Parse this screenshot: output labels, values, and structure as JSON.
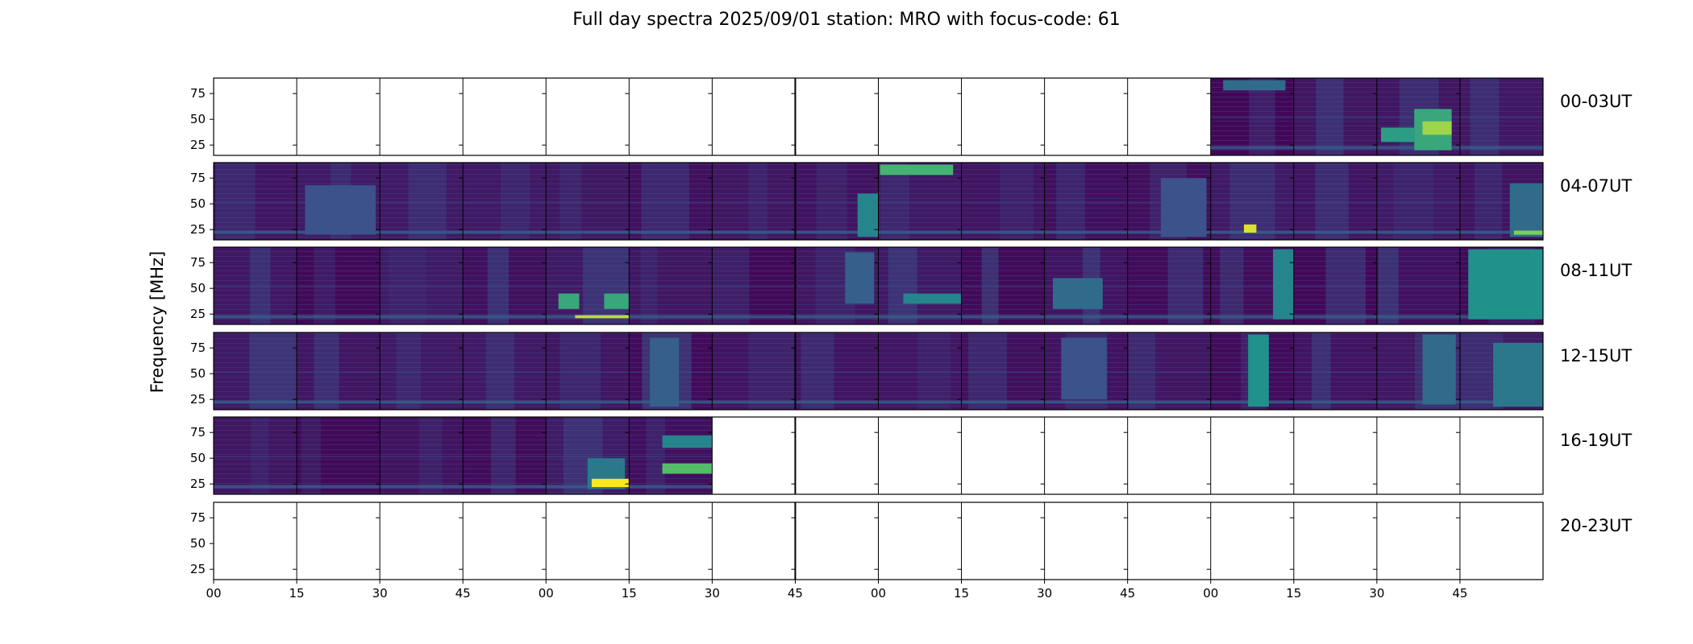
{
  "chart_data": {
    "type": "heatmap",
    "title": "Full day spectra 2025/09/01 station: MRO with focus-code: 61",
    "ylabel": "Frequency [MHz]",
    "xlabel": "",
    "ytick_labels": [
      "25",
      "50",
      "75"
    ],
    "ytick_values": [
      25,
      50,
      75
    ],
    "ylim": [
      15,
      90
    ],
    "xtick_labels": [
      "00",
      "15",
      "30",
      "45",
      "00",
      "15",
      "30",
      "45",
      "00",
      "15",
      "30",
      "45",
      "00",
      "15",
      "30",
      "45"
    ],
    "colormap": "viridis",
    "row_labels": [
      "00-03UT",
      "04-07UT",
      "08-11UT",
      "12-15UT",
      "16-19UT",
      "20-23UT"
    ],
    "panels_per_row": 16,
    "data_present": [
      [
        0,
        0,
        0,
        0,
        0,
        0,
        0,
        0,
        0,
        0,
        0,
        0,
        1,
        1,
        1,
        1
      ],
      [
        1,
        1,
        1,
        1,
        1,
        1,
        1,
        1,
        1,
        1,
        1,
        1,
        1,
        1,
        1,
        1
      ],
      [
        1,
        1,
        1,
        1,
        1,
        1,
        1,
        1,
        1,
        1,
        1,
        1,
        1,
        1,
        1,
        1
      ],
      [
        1,
        1,
        1,
        1,
        1,
        1,
        1,
        1,
        1,
        1,
        1,
        1,
        1,
        1,
        1,
        1
      ],
      [
        1,
        1,
        1,
        1,
        1,
        1,
        0,
        0,
        0,
        0,
        0,
        0,
        0,
        0,
        0,
        0
      ],
      [
        0,
        0,
        0,
        0,
        0,
        0,
        0,
        0,
        0,
        0,
        0,
        0,
        0,
        0,
        0,
        0
      ]
    ],
    "bursts": [
      {
        "row": 0,
        "col": 12,
        "x0": 0.15,
        "x1": 0.9,
        "f0": 78,
        "f1": 88,
        "level": 0.35
      },
      {
        "row": 0,
        "col": 14,
        "x0": 0.05,
        "x1": 0.45,
        "f0": 28,
        "f1": 42,
        "level": 0.55
      },
      {
        "row": 0,
        "col": 14,
        "x0": 0.45,
        "x1": 0.9,
        "f0": 20,
        "f1": 60,
        "level": 0.6
      },
      {
        "row": 0,
        "col": 14,
        "x0": 0.55,
        "x1": 0.9,
        "f0": 35,
        "f1": 48,
        "level": 0.85
      },
      {
        "row": 1,
        "col": 1,
        "x0": 0.1,
        "x1": 0.95,
        "f0": 20,
        "f1": 68,
        "level": 0.25
      },
      {
        "row": 1,
        "col": 7,
        "x0": 0.75,
        "x1": 1.0,
        "f0": 18,
        "f1": 60,
        "level": 0.45
      },
      {
        "row": 1,
        "col": 8,
        "x0": 0.02,
        "x1": 0.9,
        "f0": 78,
        "f1": 88,
        "level": 0.65
      },
      {
        "row": 1,
        "col": 11,
        "x0": 0.4,
        "x1": 0.95,
        "f0": 18,
        "f1": 75,
        "level": 0.25
      },
      {
        "row": 1,
        "col": 12,
        "x0": 0.4,
        "x1": 0.55,
        "f0": 22,
        "f1": 30,
        "level": 0.95
      },
      {
        "row": 1,
        "col": 15,
        "x0": 0.6,
        "x1": 1.0,
        "f0": 18,
        "f1": 70,
        "level": 0.35
      },
      {
        "row": 1,
        "col": 15,
        "x0": 0.65,
        "x1": 1.0,
        "f0": 20,
        "f1": 24,
        "level": 0.8
      },
      {
        "row": 2,
        "col": 4,
        "x0": 0.15,
        "x1": 0.4,
        "f0": 30,
        "f1": 45,
        "level": 0.6
      },
      {
        "row": 2,
        "col": 4,
        "x0": 0.7,
        "x1": 1.0,
        "f0": 30,
        "f1": 45,
        "level": 0.6
      },
      {
        "row": 2,
        "col": 4,
        "x0": 0.35,
        "x1": 1.0,
        "f0": 21,
        "f1": 24,
        "level": 0.9
      },
      {
        "row": 2,
        "col": 7,
        "x0": 0.6,
        "x1": 0.95,
        "f0": 35,
        "f1": 85,
        "level": 0.3
      },
      {
        "row": 2,
        "col": 8,
        "x0": 0.3,
        "x1": 1.0,
        "f0": 35,
        "f1": 45,
        "level": 0.45
      },
      {
        "row": 2,
        "col": 10,
        "x0": 0.1,
        "x1": 0.7,
        "f0": 30,
        "f1": 60,
        "level": 0.35
      },
      {
        "row": 2,
        "col": 12,
        "x0": 0.75,
        "x1": 1.0,
        "f0": 20,
        "f1": 88,
        "level": 0.45
      },
      {
        "row": 2,
        "col": 15,
        "x0": 0.1,
        "x1": 1.0,
        "f0": 20,
        "f1": 88,
        "level": 0.5
      },
      {
        "row": 3,
        "col": 5,
        "x0": 0.25,
        "x1": 0.6,
        "f0": 18,
        "f1": 85,
        "level": 0.3
      },
      {
        "row": 3,
        "col": 10,
        "x0": 0.2,
        "x1": 0.75,
        "f0": 25,
        "f1": 85,
        "level": 0.25
      },
      {
        "row": 3,
        "col": 12,
        "x0": 0.45,
        "x1": 0.7,
        "f0": 18,
        "f1": 88,
        "level": 0.5
      },
      {
        "row": 3,
        "col": 14,
        "x0": 0.55,
        "x1": 0.95,
        "f0": 20,
        "f1": 88,
        "level": 0.35
      },
      {
        "row": 3,
        "col": 15,
        "x0": 0.4,
        "x1": 1.0,
        "f0": 18,
        "f1": 80,
        "level": 0.4
      },
      {
        "row": 4,
        "col": 4,
        "x0": 0.5,
        "x1": 0.95,
        "f0": 20,
        "f1": 50,
        "level": 0.4
      },
      {
        "row": 4,
        "col": 4,
        "x0": 0.55,
        "x1": 1.0,
        "f0": 22,
        "f1": 30,
        "level": 1.0
      },
      {
        "row": 4,
        "col": 5,
        "x0": 0.4,
        "x1": 1.0,
        "f0": 35,
        "f1": 45,
        "level": 0.7
      },
      {
        "row": 4,
        "col": 5,
        "x0": 0.4,
        "x1": 1.0,
        "f0": 60,
        "f1": 72,
        "level": 0.45
      }
    ]
  },
  "colors": {
    "viridis_dark": "#440154",
    "viridis_mid": "#31688e",
    "viridis_teal": "#21918c",
    "viridis_green": "#5ec962",
    "viridis_yellow": "#fde725",
    "frame": "#000000"
  }
}
